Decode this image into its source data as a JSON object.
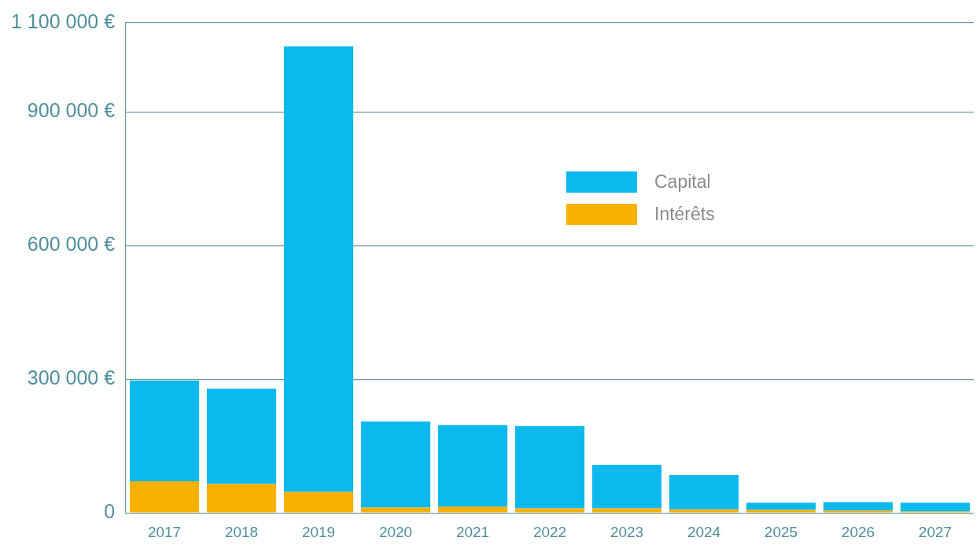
{
  "chart_data": {
    "type": "bar",
    "stacked": true,
    "categories": [
      "2017",
      "2018",
      "2019",
      "2020",
      "2021",
      "2022",
      "2023",
      "2024",
      "2025",
      "2026",
      "2027"
    ],
    "series": [
      {
        "name": "Intérêts",
        "color": "#f8b100",
        "values": [
          71000,
          65000,
          47000,
          12000,
          14000,
          10000,
          10000,
          8000,
          7000,
          5000,
          3000
        ]
      },
      {
        "name": "Capital",
        "color": "#0bb9ee",
        "values": [
          226000,
          214000,
          1000000,
          193000,
          183000,
          185000,
          98000,
          77000,
          16000,
          19000,
          20000
        ]
      }
    ],
    "ylim": [
      0,
      1100000
    ],
    "yticks": [
      0,
      {
        "value": 300000,
        "label": "300 000 €"
      },
      {
        "value": 600000,
        "label": "600 000 €"
      },
      {
        "value": 900000,
        "label": "900 000 €"
      },
      {
        "value": 1100000,
        "label": "1 100 000 €"
      }
    ],
    "grid": "y",
    "legend": "right"
  }
}
